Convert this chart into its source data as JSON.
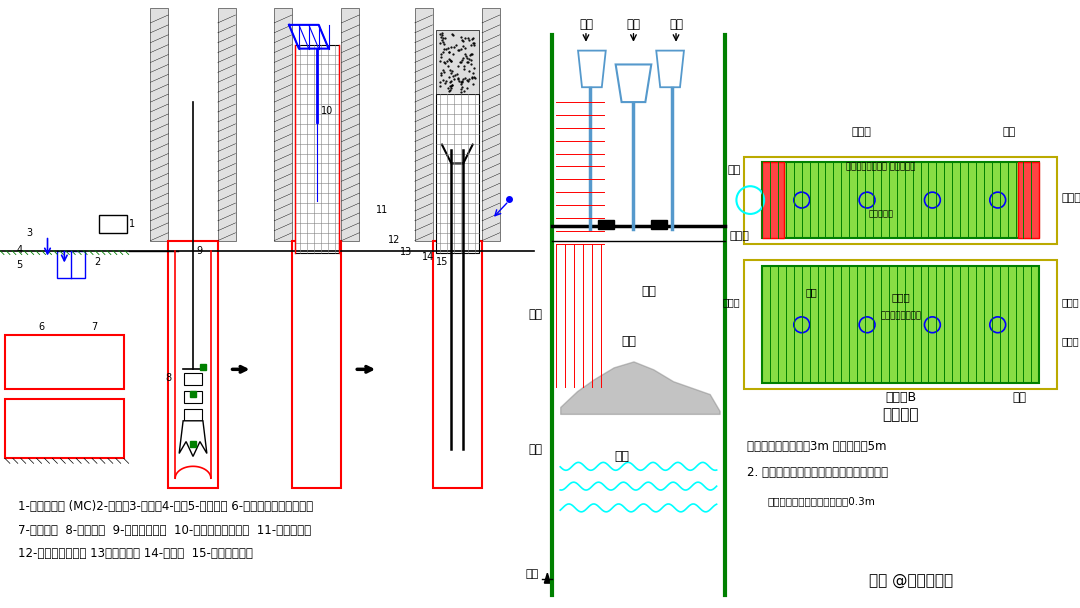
{
  "bg_color": "#ffffff",
  "caption_line1": "1-投入膨润土 (MC)2-搅拌桶3-旋滤器4-振筛5-排沙溜槽 6-回收存储池（待处理）",
  "caption_line2": "7-再生浆池  8-液面阀斗  9-护壁泥浆液位  10-吊钢筋笼专用吊具  11-浇灌混凝土",
  "caption_line3": "12-钢筋笼捆置吊点 13混凝土导管 14-接头管  15-专用顶拔设备",
  "notes": {
    "note1": "说明、导管置距一般3m 距槽壁不超5m",
    "note2": "2. 多根管灌混凝土时应逐间进行保灌混凝土",
    "note3": "面积增加时，其最新面积不大0.3m"
  },
  "watermark": "头条 @琨哥聊建筑"
}
